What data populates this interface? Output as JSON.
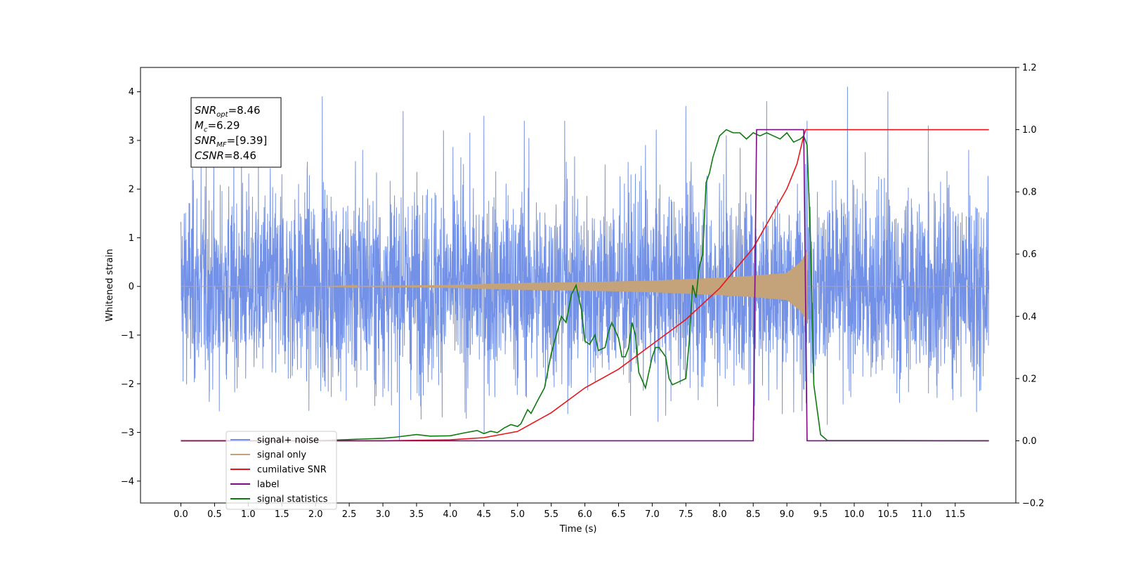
{
  "chart_data": {
    "type": "line",
    "title": "",
    "xlabel": "Time (s)",
    "ylabel": "Whitened strain",
    "y2label": "",
    "xlim": [
      -0.6,
      12.4
    ],
    "ylim": [
      -4.45,
      4.5
    ],
    "y2lim": [
      -0.2,
      1.2
    ],
    "x_ticks": [
      "0.0",
      "0.5",
      "1.0",
      "1.5",
      "2.0",
      "2.5",
      "3.0",
      "3.5",
      "4.0",
      "4.5",
      "5.0",
      "5.5",
      "6.0",
      "6.5",
      "7.0",
      "7.5",
      "8.0",
      "8.5",
      "9.0",
      "9.5",
      "10.0",
      "10.5",
      "11.0",
      "11.5"
    ],
    "y_ticks": [
      "4",
      "3",
      "2",
      "1",
      "0",
      "−1",
      "−2",
      "−3",
      "−4"
    ],
    "y2_ticks": [
      "1.2",
      "1.0",
      "0.8",
      "0.6",
      "0.4",
      "0.2",
      "0.0",
      "−0.2"
    ],
    "grid": false,
    "legend_position": "lower-left",
    "annotation": {
      "lines": [
        {
          "label": "SNR",
          "sub": "opt",
          "value": "=8.46"
        },
        {
          "label": "M",
          "sub": "c",
          "value": "=6.29"
        },
        {
          "label": "SNR",
          "sub": "MF",
          "value": "=[9.39]"
        },
        {
          "label": "CSNR",
          "sub": "",
          "value": "=8.46"
        }
      ]
    },
    "series": [
      {
        "name": "signal+ noise",
        "color": "#7391e6",
        "axis": "left",
        "kind": "noise",
        "x_range": [
          0,
          12
        ],
        "sigma": 1.0,
        "peak_values": [
          2.5,
          2.9,
          2.3,
          3.9,
          2.8,
          3.6,
          3.2,
          3.5,
          3.4,
          3.4,
          2.5,
          2.9,
          3.7,
          3.1,
          3.8,
          3.4,
          4.1,
          4.0,
          3.3,
          2.8
        ]
      },
      {
        "name": "signal only",
        "color": "#c4a27a",
        "axis": "left",
        "kind": "chirp",
        "x_range": [
          0,
          9.3
        ],
        "envelope_x": [
          0.0,
          2.0,
          4.0,
          5.0,
          6.0,
          7.0,
          8.0,
          8.5,
          9.0,
          9.2,
          9.3
        ],
        "envelope_y": [
          0.0,
          0.0,
          0.03,
          0.07,
          0.09,
          0.12,
          0.18,
          0.22,
          0.28,
          0.5,
          0.72
        ]
      },
      {
        "name": "cumilative SNR",
        "color": "#e8161a",
        "axis": "right",
        "x": [
          0,
          3.0,
          4.0,
          4.5,
          5.0,
          5.5,
          6.0,
          6.5,
          7.0,
          7.5,
          8.0,
          8.5,
          9.0,
          9.15,
          9.25,
          9.28,
          9.3,
          9.35,
          12.0
        ],
        "y": [
          0,
          0,
          0.003,
          0.01,
          0.03,
          0.09,
          0.17,
          0.23,
          0.31,
          0.39,
          0.49,
          0.62,
          0.81,
          0.89,
          0.98,
          1.0,
          1.0,
          1.0,
          1.0
        ]
      },
      {
        "name": "label",
        "color": "#7a0d82",
        "axis": "right",
        "x": [
          0,
          8.5,
          8.55,
          9.25,
          9.3,
          12.0
        ],
        "y": [
          0,
          0,
          1.0,
          1.0,
          0,
          0
        ]
      },
      {
        "name": "signal statistics",
        "color": "#0e7a10",
        "axis": "right",
        "x": [
          0,
          1.0,
          2.0,
          2.5,
          3.0,
          3.2,
          3.5,
          3.7,
          4.0,
          4.2,
          4.4,
          4.5,
          4.6,
          4.7,
          4.8,
          4.9,
          5.0,
          5.05,
          5.15,
          5.2,
          5.3,
          5.4,
          5.5,
          5.6,
          5.65,
          5.72,
          5.8,
          5.87,
          5.95,
          6.0,
          6.07,
          6.15,
          6.2,
          6.3,
          6.35,
          6.4,
          6.5,
          6.55,
          6.6,
          6.65,
          6.7,
          6.75,
          6.8,
          6.9,
          7.0,
          7.05,
          7.1,
          7.2,
          7.25,
          7.3,
          7.4,
          7.5,
          7.55,
          7.6,
          7.65,
          7.7,
          7.75,
          7.8,
          7.85,
          7.9,
          8.0,
          8.1,
          8.2,
          8.3,
          8.4,
          8.5,
          8.6,
          8.7,
          8.8,
          8.9,
          9.0,
          9.1,
          9.2,
          9.25,
          9.3,
          9.35,
          9.4,
          9.5,
          9.6,
          12.0
        ],
        "y": [
          0,
          0,
          0,
          0.004,
          0.008,
          0.012,
          0.02,
          0.015,
          0.016,
          0.025,
          0.033,
          0.023,
          0.031,
          0.026,
          0.041,
          0.052,
          0.046,
          0.055,
          0.1,
          0.088,
          0.13,
          0.17,
          0.28,
          0.36,
          0.4,
          0.38,
          0.47,
          0.5,
          0.42,
          0.32,
          0.31,
          0.34,
          0.29,
          0.3,
          0.35,
          0.38,
          0.33,
          0.27,
          0.27,
          0.3,
          0.38,
          0.34,
          0.22,
          0.17,
          0.27,
          0.3,
          0.3,
          0.27,
          0.2,
          0.18,
          0.19,
          0.2,
          0.32,
          0.5,
          0.46,
          0.56,
          0.6,
          0.83,
          0.86,
          0.91,
          0.98,
          1.0,
          0.99,
          0.99,
          0.97,
          0.99,
          0.98,
          0.99,
          0.98,
          0.97,
          0.99,
          0.96,
          0.97,
          0.98,
          0.95,
          0.65,
          0.18,
          0.02,
          0.001,
          0
        ]
      }
    ]
  }
}
